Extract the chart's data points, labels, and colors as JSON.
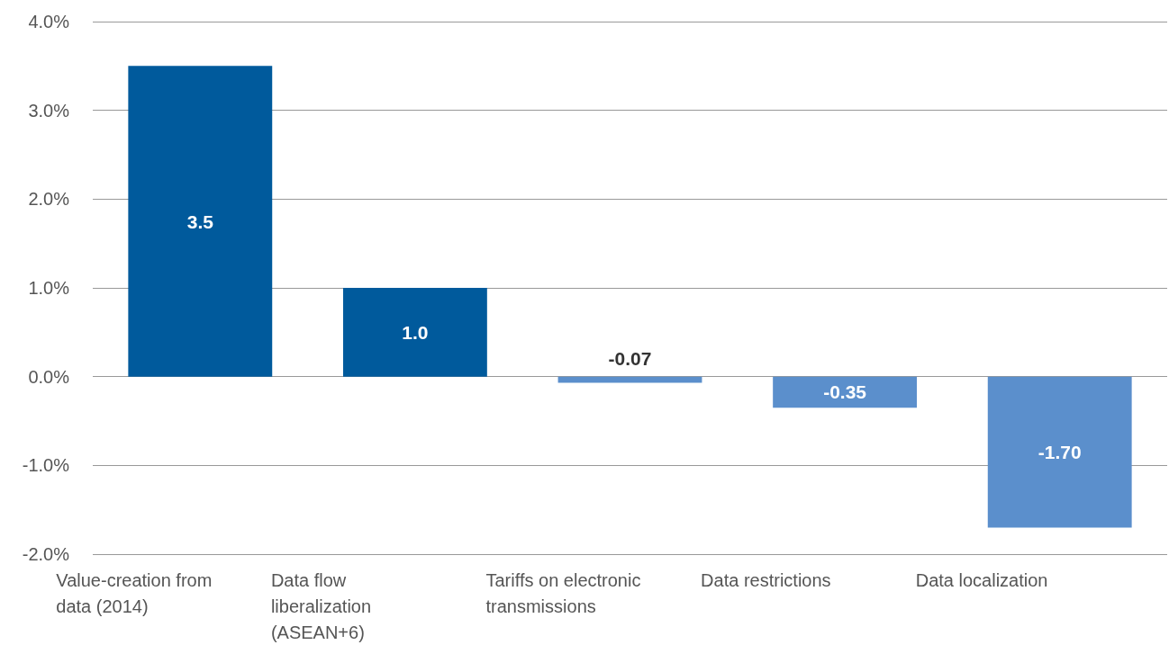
{
  "chart_data": {
    "type": "bar",
    "categories": [
      "Value-creation from data (2014)",
      "Data flow liberalization (ASEAN+6)",
      "Tariffs on electronic transmissions",
      "Data restrictions",
      "Data localization"
    ],
    "values": [
      3.5,
      1.0,
      -0.07,
      -0.35,
      -1.7
    ],
    "colors": [
      "#005a9c",
      "#005a9c",
      "#5b8fcc",
      "#5b8fcc",
      "#5b8fcc"
    ],
    "value_labels": [
      "3.5",
      "1.0",
      "-0.07",
      "-0.35",
      "-1.70"
    ],
    "ylim": [
      -2,
      4
    ],
    "yticks": [
      {
        "value": -2,
        "label": "-2.0%"
      },
      {
        "value": -1,
        "label": "-1.0%"
      },
      {
        "value": 0,
        "label": "0.0%"
      },
      {
        "value": 1,
        "label": "1.0%"
      },
      {
        "value": 2,
        "label": "2.0%"
      },
      {
        "value": 3,
        "label": "3.0%"
      },
      {
        "value": 4,
        "label": "4.0%"
      }
    ],
    "grid": "y"
  }
}
